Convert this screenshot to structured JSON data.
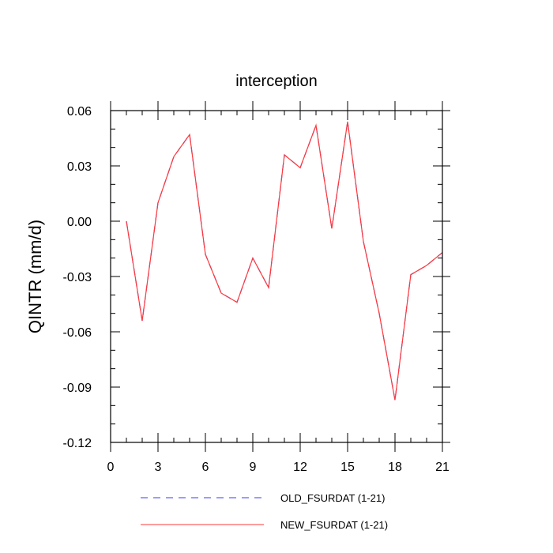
{
  "chart_data": {
    "type": "line",
    "title": "interception",
    "xlabel": "",
    "ylabel": "QINTR  (mm/d)",
    "xlim": [
      0,
      21
    ],
    "ylim": [
      -0.12,
      0.06
    ],
    "xticks": [
      0,
      3,
      6,
      9,
      12,
      15,
      18,
      21
    ],
    "xtick_labels": [
      "0",
      "3",
      "6",
      "9",
      "12",
      "15",
      "18",
      "21"
    ],
    "yticks": [
      0.06,
      0.03,
      0.0,
      -0.03,
      -0.06,
      -0.09,
      -0.12
    ],
    "ytick_labels": [
      "0.06",
      "0.03",
      "0.00",
      "-0.03",
      "-0.06",
      "-0.09",
      "-0.12"
    ],
    "grid": false,
    "legend_position": "bottom",
    "x": [
      1,
      2,
      3,
      4,
      5,
      6,
      7,
      8,
      9,
      10,
      11,
      12,
      13,
      14,
      15,
      16,
      17,
      18,
      19,
      20,
      21
    ],
    "series": [
      {
        "name": "OLD_FSURDAT (1-21)",
        "color": "#3a3aff",
        "style": "dashed",
        "values": [
          0.0,
          -0.054,
          0.01,
          0.035,
          0.047,
          -0.018,
          -0.039,
          -0.044,
          -0.02,
          -0.036,
          0.036,
          0.029,
          0.052,
          -0.004,
          0.054,
          -0.011,
          -0.05,
          -0.097,
          -0.029,
          -0.024,
          -0.017
        ]
      },
      {
        "name": "NEW_FSURDAT (1-21)",
        "color": "#ff3a3a",
        "style": "solid",
        "values": [
          0.0,
          -0.054,
          0.01,
          0.035,
          0.047,
          -0.018,
          -0.039,
          -0.044,
          -0.02,
          -0.036,
          0.036,
          0.029,
          0.052,
          -0.004,
          0.054,
          -0.011,
          -0.05,
          -0.097,
          -0.029,
          -0.024,
          -0.017
        ]
      }
    ]
  }
}
